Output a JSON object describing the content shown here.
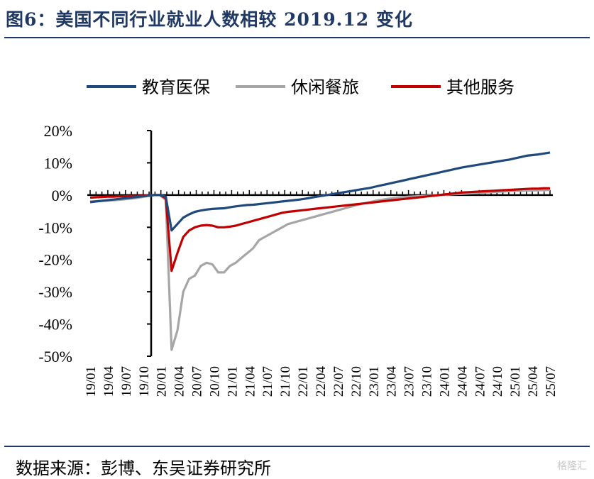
{
  "header": {
    "title": "图6：美国不同行业就业人数相较 2019.12 变化"
  },
  "footer": {
    "source": "数据来源：彭博、东吴证券研究所",
    "watermark": "格隆汇"
  },
  "colors": {
    "accent": "#1f3864",
    "series_blue": "#1f497d",
    "series_gray": "#a6a6a6",
    "series_red": "#c00000"
  },
  "chart_data": {
    "type": "line",
    "xlabel": "",
    "ylabel": "",
    "ylim": [
      -50,
      20
    ],
    "yticks": [
      20,
      10,
      0,
      -10,
      -20,
      -30,
      -40,
      -50
    ],
    "ytick_labels": [
      "20%",
      "10%",
      "0%",
      "-10%",
      "-20%",
      "-30%",
      "-40%",
      "-50%"
    ],
    "x_tick_labels": [
      "19/01",
      "19/04",
      "19/07",
      "19/10",
      "20/01",
      "20/04",
      "20/07",
      "20/10",
      "21/01",
      "21/04",
      "21/07",
      "21/10",
      "22/01",
      "22/04",
      "22/07",
      "22/10",
      "23/01",
      "23/04",
      "23/07",
      "23/10",
      "24/01",
      "24/04",
      "24/07",
      "24/10",
      "25/01",
      "25/04",
      "25/07"
    ],
    "legend_position": "top",
    "series": [
      {
        "name": "教育医保",
        "color": "#1f497d",
        "values": [
          -2.2,
          -2.0,
          -1.8,
          -1.6,
          -1.4,
          -1.2,
          -1.0,
          -0.8,
          -0.6,
          -0.4,
          -0.2,
          0,
          0,
          -0.5,
          -11,
          -9,
          -7,
          -6,
          -5.2,
          -4.8,
          -4.5,
          -4.3,
          -4.2,
          -4.1,
          -3.8,
          -3.5,
          -3.3,
          -3.1,
          -3.0,
          -2.8,
          -2.6,
          -2.4,
          -2.2,
          -2.0,
          -1.8,
          -1.6,
          -1.4,
          -1.1,
          -0.8,
          -0.5,
          -0.2,
          0.1,
          0.4,
          0.7,
          1.0,
          1.3,
          1.6,
          1.9,
          2.2,
          2.6,
          3.0,
          3.4,
          3.8,
          4.2,
          4.6,
          5.0,
          5.4,
          5.8,
          6.2,
          6.6,
          7.0,
          7.4,
          7.8,
          8.2,
          8.6,
          8.9,
          9.2,
          9.5,
          9.8,
          10.1,
          10.4,
          10.7,
          11.0,
          11.4,
          11.8,
          12.2,
          12.4,
          12.6,
          12.9,
          13.2
        ]
      },
      {
        "name": "休闲餐旅",
        "color": "#a6a6a6",
        "values": [
          -2.0,
          -1.9,
          -1.8,
          -1.7,
          -1.6,
          -1.5,
          -1.3,
          -1.1,
          -0.9,
          -0.6,
          -0.3,
          0,
          0,
          -1.5,
          -48,
          -42,
          -30,
          -26,
          -25,
          -22,
          -21,
          -21.5,
          -24,
          -24,
          -22,
          -21,
          -19.5,
          -18,
          -16.5,
          -14,
          -13,
          -12,
          -11,
          -10,
          -9,
          -8.5,
          -8,
          -7.5,
          -7,
          -6.5,
          -6,
          -5.5,
          -5,
          -4.5,
          -4,
          -3.5,
          -3,
          -2.6,
          -2.2,
          -1.8,
          -1.5,
          -1.2,
          -1.0,
          -0.8,
          -0.6,
          -0.5,
          -0.4,
          -0.3,
          -0.2,
          -0.1,
          0,
          0.1,
          0.2,
          0.3,
          0.4,
          0.5,
          0.6,
          0.7,
          0.8,
          0.9,
          1.0,
          1.1,
          1.2,
          1.3,
          1.3,
          1.4,
          1.4,
          1.5,
          1.5,
          1.6
        ]
      },
      {
        "name": "其他服务",
        "color": "#c00000",
        "values": [
          -0.8,
          -0.7,
          -0.6,
          -0.5,
          -0.5,
          -0.4,
          -0.4,
          -0.3,
          -0.3,
          -0.2,
          -0.1,
          0,
          0,
          -1,
          -23.5,
          -18,
          -13,
          -11,
          -10,
          -9.5,
          -9.3,
          -9.5,
          -10,
          -10,
          -9.8,
          -9.5,
          -9,
          -8.5,
          -8,
          -7.5,
          -7,
          -6.5,
          -6,
          -5.5,
          -5.2,
          -5,
          -4.8,
          -4.6,
          -4.4,
          -4.2,
          -4,
          -3.8,
          -3.6,
          -3.4,
          -3.2,
          -3.0,
          -2.8,
          -2.6,
          -2.4,
          -2.2,
          -2.0,
          -1.8,
          -1.6,
          -1.4,
          -1.2,
          -1.0,
          -0.8,
          -0.6,
          -0.4,
          -0.2,
          0,
          0.2,
          0.4,
          0.6,
          0.8,
          0.9,
          1.0,
          1.1,
          1.2,
          1.3,
          1.4,
          1.5,
          1.6,
          1.7,
          1.8,
          1.9,
          2.0,
          2.0,
          2.1,
          2.1
        ]
      }
    ]
  }
}
